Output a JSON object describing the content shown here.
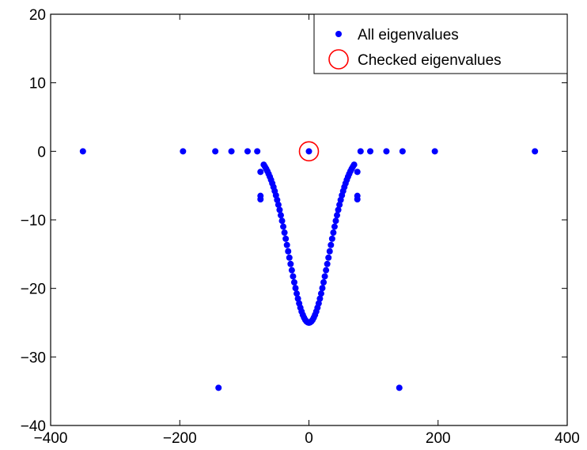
{
  "chart_data": {
    "type": "scatter",
    "xlim": [
      -400,
      400
    ],
    "ylim": [
      -40,
      20
    ],
    "xticks": [
      -400,
      -200,
      0,
      200,
      400
    ],
    "yticks": [
      -40,
      -30,
      -20,
      -10,
      0,
      10,
      20
    ],
    "xtick_labels": [
      "−400",
      "−200",
      "0",
      "200",
      "400"
    ],
    "ytick_labels": [
      "−40",
      "−30",
      "−20",
      "−10",
      "0",
      "10",
      "20"
    ],
    "grid": false,
    "legend": {
      "placement": "top-right",
      "entries": [
        "All eigenvalues",
        "Checked eigenvalues"
      ]
    },
    "series": [
      {
        "name": "All eigenvalues",
        "marker": "filled-dot",
        "color": "#0000ff",
        "points": [
          [
            -350,
            0
          ],
          [
            -195,
            0
          ],
          [
            -145,
            0
          ],
          [
            -120,
            0
          ],
          [
            -95,
            0
          ],
          [
            -80,
            0
          ],
          [
            -75,
            -3
          ],
          [
            -75,
            -6.5
          ],
          [
            -75,
            -7
          ],
          [
            0,
            0
          ],
          [
            75,
            -3
          ],
          [
            75,
            -6.5
          ],
          [
            75,
            -7
          ],
          [
            80,
            0
          ],
          [
            95,
            0
          ],
          [
            120,
            0
          ],
          [
            145,
            0
          ],
          [
            195,
            0
          ],
          [
            350,
            0
          ],
          [
            -140,
            -34.5
          ],
          [
            140,
            -34.5
          ]
        ],
        "curve": {
          "description": "dense dotted V-shaped band of eigenvalues",
          "min_point": [
            0,
            -25
          ],
          "x_span": [
            -70,
            70
          ],
          "formula": "y = -25 * exp(-(x/40)^2 / 1.2)",
          "point_count": 75
        }
      },
      {
        "name": "Checked eigenvalues",
        "marker": "open-circle",
        "color": "#ff0000",
        "points": [
          [
            0,
            0
          ]
        ]
      }
    ]
  }
}
